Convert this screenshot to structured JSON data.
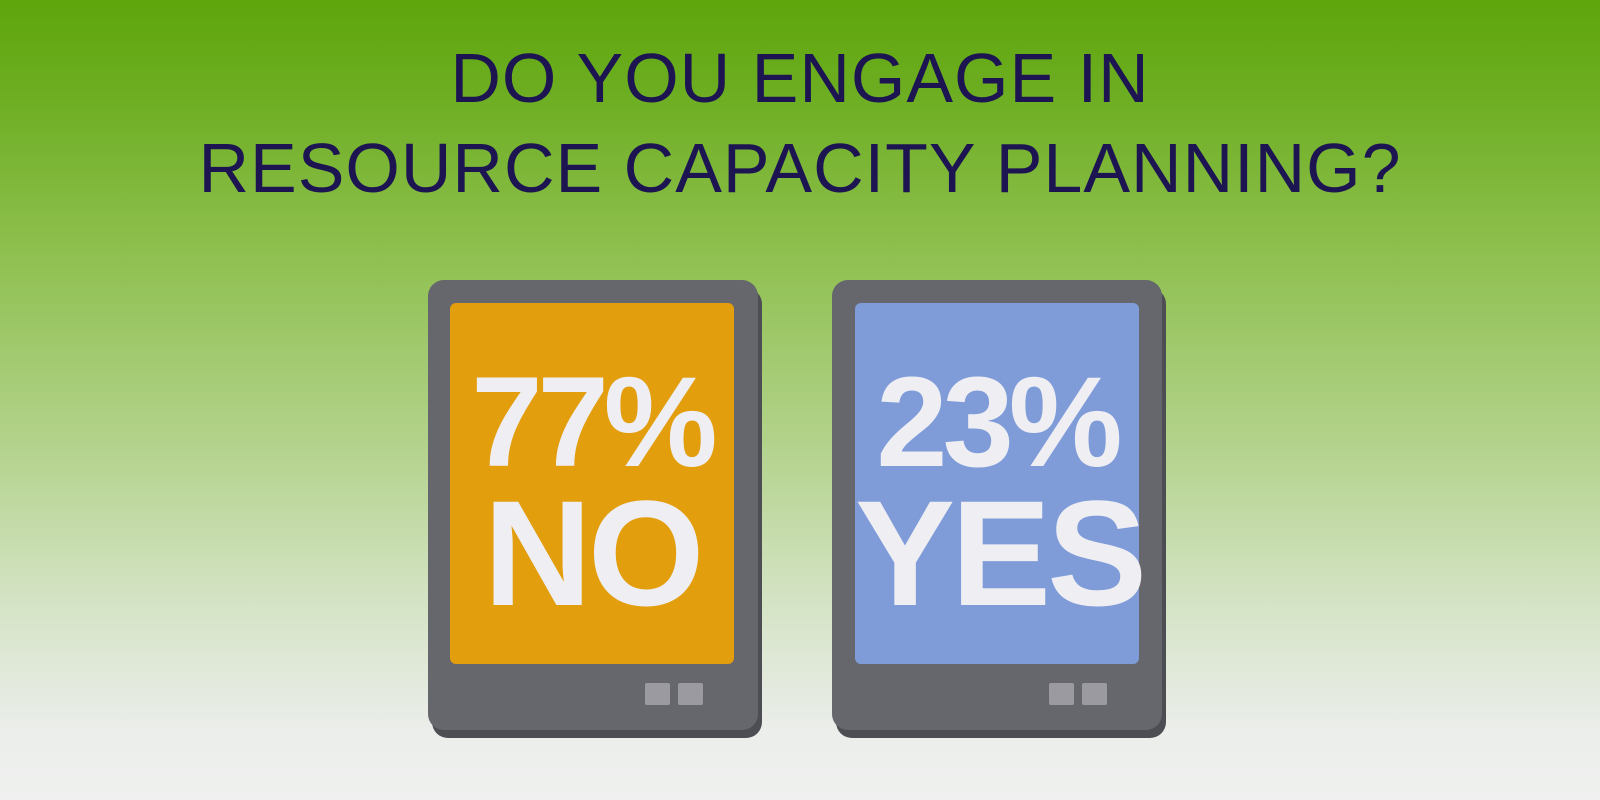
{
  "title": [
    "DO YOU ENGAGE IN",
    "RESOURCE CAPACITY PLANNING?"
  ],
  "answers": [
    {
      "percent": "77%",
      "answer": "NO"
    },
    {
      "percent": "23%",
      "answer": "YES"
    }
  ]
}
